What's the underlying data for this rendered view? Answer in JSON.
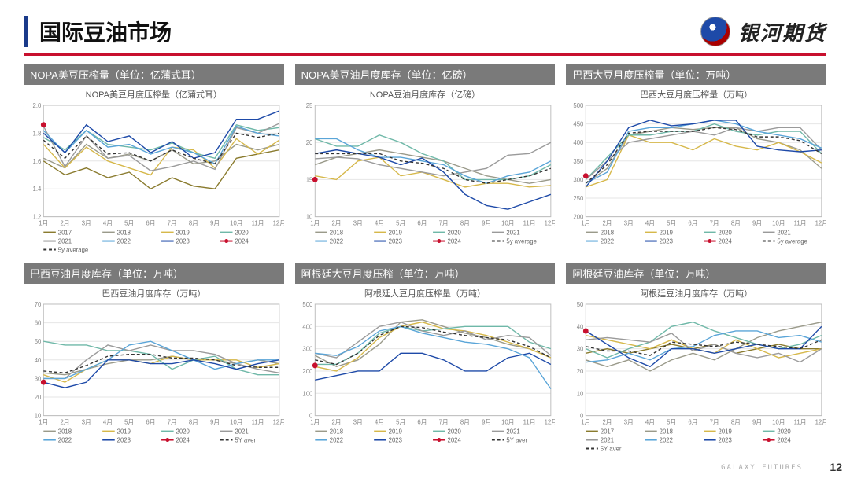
{
  "header": {
    "title": "国际豆油市场",
    "brand": "银河期货"
  },
  "footer": {
    "org": "GALAXY FUTURES",
    "page": "12"
  },
  "months": [
    "1月",
    "2月",
    "3月",
    "4月",
    "5月",
    "6月",
    "7月",
    "8月",
    "9月",
    "10月",
    "11月",
    "12月"
  ],
  "palette": {
    "2017": "#8a7b2e",
    "2018": "#9a9a8a",
    "2019": "#d6b84a",
    "2020": "#6fb8a8",
    "2021": "#9a9a9a",
    "2022": "#5aa5d8",
    "2023": "#1e4aa8",
    "2024_dot": "#c8102e",
    "avg": "#333333",
    "grid": "#e6e6e6",
    "axis": "#bdbdbd",
    "bg": "#ffffff"
  },
  "style": {
    "axis_fontsize": 8,
    "legend_fontsize": 8,
    "line_width": 1.4,
    "avg_dash": "4 3",
    "dot_radius": 3.5,
    "title_fontsize": 13,
    "subtitle_fontsize": 11
  },
  "charts": [
    {
      "bar_title": "NOPA美豆压榨量（单位：亿蒲式耳）",
      "subtitle": "NOPA美豆月度压榨量（亿蒲式耳）",
      "ylim": [
        1.2,
        2.0
      ],
      "ystep": 0.2,
      "legend_years": [
        "2017",
        "2018",
        "2019",
        "2020",
        "2021",
        "2022",
        "2023"
      ],
      "avg_label": "5y average",
      "series": {
        "2017": [
          1.6,
          1.5,
          1.55,
          1.48,
          1.52,
          1.4,
          1.48,
          1.42,
          1.4,
          1.62,
          1.65,
          1.68
        ],
        "2018": [
          1.62,
          1.55,
          1.72,
          1.62,
          1.65,
          1.6,
          1.68,
          1.58,
          1.6,
          1.72,
          1.68,
          1.72
        ],
        "2019": [
          1.72,
          1.55,
          1.7,
          1.6,
          1.55,
          1.5,
          1.7,
          1.68,
          1.55,
          1.76,
          1.65,
          1.75
        ],
        "2020": [
          1.77,
          1.68,
          1.82,
          1.72,
          1.7,
          1.68,
          1.73,
          1.66,
          1.62,
          1.86,
          1.82,
          1.84
        ],
        "2021": [
          1.85,
          1.56,
          1.78,
          1.62,
          1.64,
          1.53,
          1.56,
          1.6,
          1.54,
          1.84,
          1.8,
          1.87
        ],
        "2022": [
          1.82,
          1.66,
          1.82,
          1.7,
          1.72,
          1.65,
          1.7,
          1.66,
          1.58,
          1.85,
          1.8,
          1.78
        ],
        "2023": [
          1.8,
          1.66,
          1.86,
          1.74,
          1.78,
          1.66,
          1.74,
          1.62,
          1.66,
          1.9,
          1.9,
          1.96
        ],
        "avg": [
          1.75,
          1.62,
          1.78,
          1.65,
          1.66,
          1.6,
          1.68,
          1.62,
          1.58,
          1.8,
          1.77,
          1.8
        ]
      },
      "point2024": [
        1,
        1.86
      ]
    },
    {
      "bar_title": "NOPA美豆油月度库存（单位：亿磅）",
      "subtitle": "NOPA豆油月度库存（亿磅）",
      "ylim": [
        10,
        25
      ],
      "ystep": 5,
      "legend_years": [
        "2018",
        "2019",
        "2020",
        "2021",
        "2022",
        "2023"
      ],
      "avg_label": "5y average",
      "series": {
        "2018": [
          17.0,
          18.0,
          18.5,
          19.0,
          18.5,
          18.0,
          17.5,
          16.5,
          15.5,
          15.0,
          14.5,
          15.0
        ],
        "2019": [
          15.5,
          15.0,
          17.5,
          18.0,
          15.5,
          16.0,
          15.0,
          14.0,
          14.5,
          14.5,
          14.0,
          14.2
        ],
        "2020": [
          20.5,
          19.5,
          19.5,
          21.0,
          20.0,
          18.5,
          17.5,
          15.0,
          15.0,
          15.0,
          15.5,
          17.0
        ],
        "2021": [
          17.8,
          18.0,
          17.8,
          17.0,
          16.5,
          16.0,
          15.5,
          16.0,
          16.5,
          18.3,
          18.5,
          20.0
        ],
        "2022": [
          20.5,
          20.5,
          19.0,
          18.0,
          18.0,
          17.5,
          17.0,
          15.5,
          14.5,
          15.5,
          16.0,
          17.5
        ],
        "2023": [
          18.5,
          19.0,
          18.5,
          18.0,
          17.0,
          17.9,
          16.0,
          13.0,
          11.5,
          11.0,
          12.0,
          13.0
        ],
        "avg": [
          18.5,
          18.5,
          18.5,
          18.5,
          17.5,
          17.2,
          16.5,
          15.0,
          14.5,
          15.0,
          15.5,
          16.5
        ]
      },
      "point2024": [
        1,
        15.0
      ]
    },
    {
      "bar_title": "巴西大豆月度压榨量（单位：万吨）",
      "subtitle": "巴西大豆月度压榨量（万吨）",
      "ylim": [
        200,
        500
      ],
      "ystep": 50,
      "legend_years": [
        "2018",
        "2019",
        "2020",
        "2021",
        "2022",
        "2023"
      ],
      "avg_label": "5y average",
      "series": {
        "2018": [
          290,
          330,
          420,
          430,
          440,
          435,
          440,
          440,
          410,
          400,
          380,
          330
        ],
        "2019": [
          280,
          300,
          420,
          400,
          400,
          380,
          410,
          390,
          380,
          400,
          375,
          345
        ],
        "2020": [
          300,
          360,
          420,
          420,
          430,
          430,
          450,
          430,
          420,
          430,
          430,
          370
        ],
        "2021": [
          300,
          350,
          400,
          410,
          420,
          430,
          420,
          440,
          430,
          440,
          440,
          380
        ],
        "2022": [
          290,
          320,
          430,
          440,
          440,
          450,
          460,
          450,
          430,
          420,
          410,
          385
        ],
        "2023": [
          280,
          350,
          440,
          460,
          445,
          450,
          460,
          460,
          390,
          380,
          375,
          380
        ],
        "avg": [
          290,
          340,
          425,
          430,
          430,
          430,
          440,
          435,
          415,
          415,
          405,
          370
        ]
      },
      "point2024": [
        1,
        310
      ]
    },
    {
      "bar_title": "巴西豆油月度库存（单位：万吨）",
      "subtitle": "巴西豆油月度库存（万吨）",
      "ylim": [
        10,
        70
      ],
      "ystep": 10,
      "legend_years": [
        "2018",
        "2019",
        "2020",
        "2021",
        "2022",
        "2023"
      ],
      "avg_label": "5Y aver",
      "series": {
        "2018": [
          33,
          32,
          35,
          38,
          40,
          40,
          42,
          40,
          40,
          38,
          40,
          38
        ],
        "2019": [
          32,
          28,
          35,
          40,
          40,
          38,
          42,
          40,
          40,
          40,
          36,
          38
        ],
        "2020": [
          50,
          48,
          48,
          45,
          45,
          43,
          35,
          40,
          42,
          35,
          32,
          32
        ],
        "2021": [
          30,
          30,
          40,
          48,
          45,
          48,
          45,
          45,
          43,
          38,
          35,
          33
        ],
        "2022": [
          30,
          30,
          35,
          40,
          48,
          50,
          45,
          40,
          35,
          38,
          40,
          40
        ],
        "2023": [
          28,
          25,
          28,
          40,
          40,
          38,
          38,
          40,
          38,
          35,
          38,
          40
        ],
        "avg": [
          34,
          33,
          37,
          42,
          43,
          43,
          41,
          41,
          40,
          37,
          36,
          36
        ]
      },
      "point2024": [
        1,
        28
      ]
    },
    {
      "bar_title": "阿根廷大豆月度压榨（单位：万吨）",
      "subtitle": "阿根廷大豆月度压榨量（万吨）",
      "ylim": [
        0,
        500
      ],
      "ystep": 100,
      "legend_years": [
        "2018",
        "2019",
        "2020",
        "2021",
        "2022",
        "2023"
      ],
      "avg_label": "5Y aver",
      "series": {
        "2018": [
          270,
          220,
          250,
          320,
          420,
          430,
          400,
          370,
          350,
          320,
          300,
          260
        ],
        "2019": [
          220,
          200,
          260,
          350,
          400,
          420,
          390,
          380,
          360,
          330,
          300,
          260
        ],
        "2020": [
          230,
          230,
          280,
          370,
          400,
          380,
          390,
          400,
          400,
          400,
          330,
          300
        ],
        "2021": [
          280,
          260,
          330,
          400,
          420,
          380,
          360,
          380,
          340,
          360,
          350,
          270
        ],
        "2022": [
          280,
          270,
          310,
          380,
          400,
          370,
          350,
          330,
          320,
          300,
          260,
          120
        ],
        "2023": [
          160,
          180,
          200,
          200,
          280,
          280,
          250,
          200,
          200,
          260,
          280,
          230
        ],
        "avg": [
          250,
          230,
          280,
          360,
          400,
          395,
          375,
          360,
          350,
          340,
          310,
          260
        ]
      },
      "point2024": [
        1,
        225
      ]
    },
    {
      "bar_title": "阿根廷豆油库存（单位：万吨）",
      "subtitle": "阿根廷豆油月度库存（万吨）",
      "ylim": [
        0,
        50
      ],
      "ystep": 10,
      "legend_years": [
        "2017",
        "2018",
        "2019",
        "2020",
        "2021",
        "2022",
        "2023"
      ],
      "avg_label": "5Y aver",
      "series": {
        "2017": [
          28,
          30,
          28,
          30,
          32,
          30,
          32,
          28,
          30,
          32,
          30,
          30
        ],
        "2018": [
          25,
          22,
          25,
          20,
          25,
          28,
          25,
          30,
          35,
          38,
          40,
          42
        ],
        "2019": [
          36,
          34,
          32,
          30,
          34,
          30,
          28,
          34,
          30,
          26,
          28,
          30
        ],
        "2020": [
          30,
          26,
          30,
          33,
          40,
          42,
          38,
          35,
          32,
          30,
          32,
          36
        ],
        "2021": [
          34,
          35,
          34,
          33,
          37,
          29,
          32,
          28,
          26,
          28,
          24,
          30
        ],
        "2022": [
          24,
          25,
          28,
          25,
          30,
          31,
          36,
          38,
          38,
          35,
          36,
          33
        ],
        "2023": [
          38,
          32,
          26,
          22,
          30,
          30,
          28,
          30,
          32,
          30,
          30,
          40
        ],
        "avg": [
          31,
          29,
          29,
          27,
          33,
          32,
          31,
          33,
          32,
          31,
          30,
          34
        ]
      },
      "point2024": [
        1,
        38
      ]
    }
  ]
}
